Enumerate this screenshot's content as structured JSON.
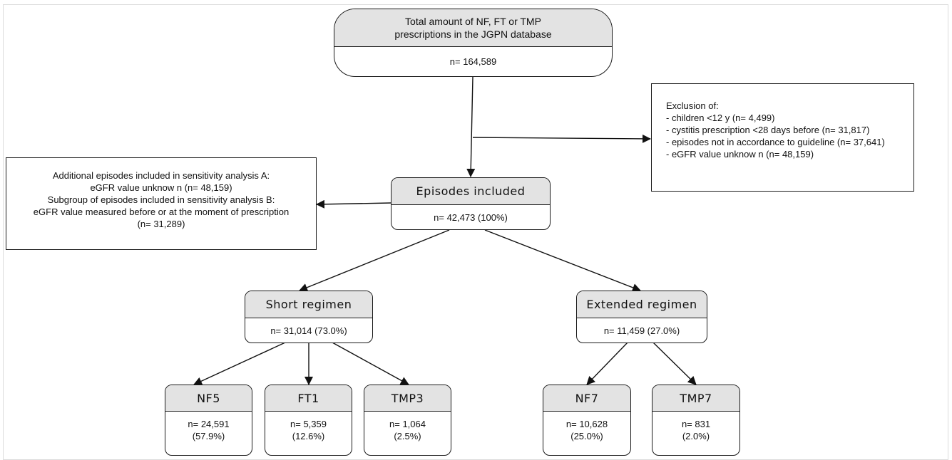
{
  "top": {
    "title_line1": "Total amount of NF, FT or TMP",
    "title_line2": "prescriptions in the JGPN database",
    "count": "n= 164,589"
  },
  "exclusion": {
    "lines": [
      "Exclusion of:",
      "- children <12 y (n= 4,499)",
      "- cystitis prescription <28 days before (n= 31,817)",
      "- episodes not in accordance to guideline (n= 37,641)",
      "- eGFR value unknow n (n= 48,159)"
    ]
  },
  "sensitivity": {
    "lines": [
      "Additional episodes included in sensitivity analysis A:",
      "eGFR value unknow n (n= 48,159)",
      "Subgroup of episodes included in sensitivity analysis B:",
      "eGFR value measured before or at the moment of prescription",
      "(n= 31,289)"
    ]
  },
  "included": {
    "title": "Episodes included",
    "count": "n= 42,473 (100%)"
  },
  "short": {
    "title": "Short regimen",
    "count": "n= 31,014 (73.0%)"
  },
  "extended": {
    "title": "Extended regimen",
    "count": "n= 11,459 (27.0%)"
  },
  "leaves": {
    "nf5": {
      "title": "NF5",
      "count": "n= 24,591",
      "pct": "(57.9%)"
    },
    "ft1": {
      "title": "FT1",
      "count": "n= 5,359",
      "pct": "(12.6%)"
    },
    "tmp3": {
      "title": "TMP3",
      "count": "n= 1,064",
      "pct": "(2.5%)"
    },
    "nf7": {
      "title": "NF7",
      "count": "n= 10,628",
      "pct": "(25.0%)"
    },
    "tmp7": {
      "title": "TMP7",
      "count": "n= 831",
      "pct": "(2.0%)"
    }
  }
}
